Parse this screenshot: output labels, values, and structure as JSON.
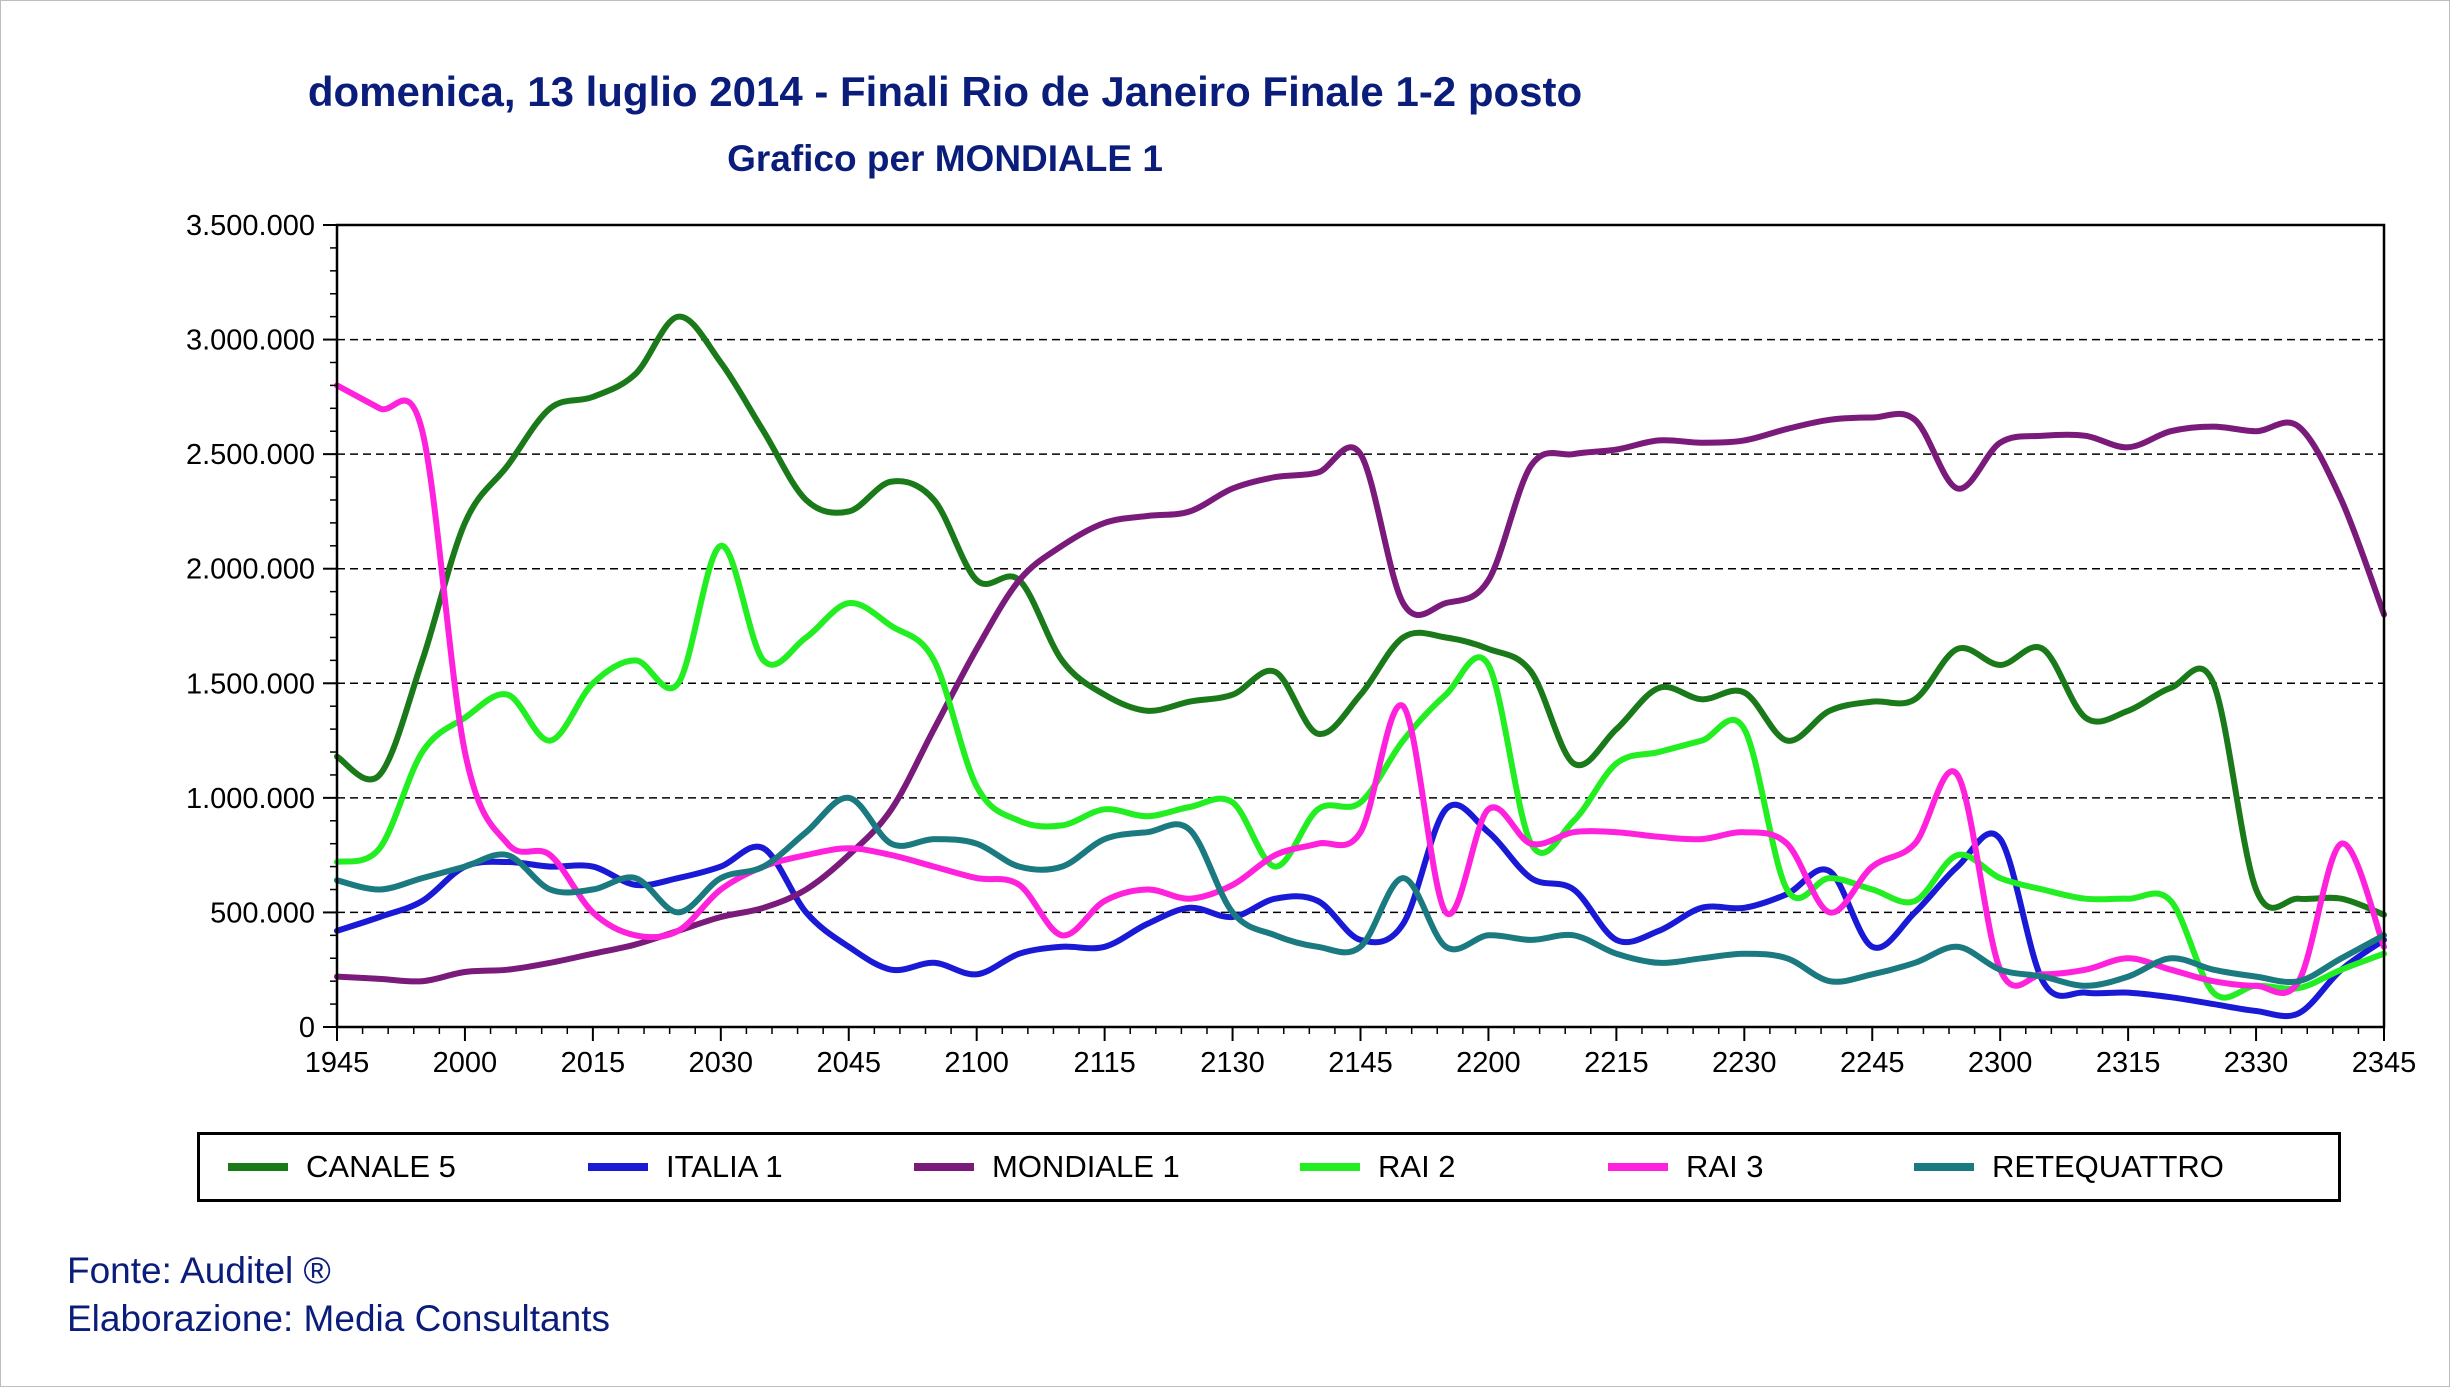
{
  "chart_data": {
    "type": "line",
    "title": "domenica, 13 luglio 2014 - Finali Rio de Janeiro Finale 1-2 posto",
    "subtitle": "Grafico per MONDIALE 1",
    "xlabel": "",
    "ylabel": "",
    "ylim": [
      0,
      3500000
    ],
    "y_ticks": [
      0,
      500000,
      1000000,
      1500000,
      2000000,
      2500000,
      3000000,
      3500000
    ],
    "y_tick_labels": [
      "0",
      "500.000",
      "1.000.000",
      "1.500.000",
      "2.000.000",
      "2.500.000",
      "3.000.000",
      "3.500.000"
    ],
    "x_tick_labels": [
      "1945",
      "2000",
      "2015",
      "2030",
      "2045",
      "2100",
      "2115",
      "2130",
      "2145",
      "2200",
      "2215",
      "2230",
      "2245",
      "2300",
      "2315",
      "2330",
      "2345"
    ],
    "grid": "horizontal dashed",
    "legend_position": "bottom",
    "series": [
      {
        "name": "CANALE 5",
        "color": "#1a7a1a",
        "x": [
          "19:45",
          "19:50",
          "19:55",
          "20:00",
          "20:05",
          "20:10",
          "20:15",
          "20:20",
          "20:25",
          "20:30",
          "20:35",
          "20:40",
          "20:45",
          "20:50",
          "20:55",
          "21:00",
          "21:05",
          "21:10",
          "21:15",
          "21:20",
          "21:25",
          "21:30",
          "21:35",
          "21:40",
          "21:45",
          "21:50",
          "21:55",
          "22:00",
          "22:05",
          "22:10",
          "22:15",
          "22:20",
          "22:25",
          "22:30",
          "22:35",
          "22:40",
          "22:45",
          "22:50",
          "22:55",
          "23:00",
          "23:05",
          "23:10",
          "23:15",
          "23:20",
          "23:25",
          "23:30",
          "23:35",
          "23:40",
          "23:45"
        ],
        "values": [
          1180000,
          1100000,
          1600000,
          2200000,
          2450000,
          2700000,
          2750000,
          2850000,
          3100000,
          2900000,
          2600000,
          2300000,
          2250000,
          2380000,
          2300000,
          1950000,
          1950000,
          1600000,
          1450000,
          1380000,
          1420000,
          1450000,
          1550000,
          1280000,
          1450000,
          1700000,
          1700000,
          1650000,
          1550000,
          1150000,
          1300000,
          1480000,
          1430000,
          1460000,
          1250000,
          1380000,
          1420000,
          1430000,
          1650000,
          1580000,
          1650000,
          1350000,
          1380000,
          1480000,
          1500000,
          600000,
          560000,
          560000,
          490000
        ]
      },
      {
        "name": "ITALIA 1",
        "color": "#1a1ad6",
        "x": [
          "19:45",
          "19:50",
          "19:55",
          "20:00",
          "20:05",
          "20:10",
          "20:15",
          "20:20",
          "20:25",
          "20:30",
          "20:35",
          "20:40",
          "20:45",
          "20:50",
          "20:55",
          "21:00",
          "21:05",
          "21:10",
          "21:15",
          "21:20",
          "21:25",
          "21:30",
          "21:35",
          "21:40",
          "21:45",
          "21:50",
          "21:55",
          "22:00",
          "22:05",
          "22:10",
          "22:15",
          "22:20",
          "22:25",
          "22:30",
          "22:35",
          "22:40",
          "22:45",
          "22:50",
          "22:55",
          "23:00",
          "23:05",
          "23:10",
          "23:15",
          "23:20",
          "23:25",
          "23:30",
          "23:35",
          "23:40",
          "23:45"
        ],
        "values": [
          420000,
          480000,
          550000,
          700000,
          720000,
          700000,
          700000,
          620000,
          650000,
          700000,
          780000,
          500000,
          350000,
          250000,
          280000,
          230000,
          320000,
          350000,
          350000,
          450000,
          520000,
          480000,
          560000,
          550000,
          380000,
          450000,
          950000,
          850000,
          650000,
          600000,
          380000,
          420000,
          520000,
          520000,
          580000,
          680000,
          350000,
          500000,
          700000,
          820000,
          200000,
          150000,
          150000,
          130000,
          100000,
          70000,
          60000,
          250000,
          380000
        ]
      },
      {
        "name": "MONDIALE 1",
        "color": "#7a1a7a",
        "x": [
          "19:45",
          "19:50",
          "19:55",
          "20:00",
          "20:05",
          "20:10",
          "20:15",
          "20:20",
          "20:25",
          "20:30",
          "20:35",
          "20:40",
          "20:45",
          "20:50",
          "20:55",
          "21:00",
          "21:05",
          "21:10",
          "21:15",
          "21:20",
          "21:25",
          "21:30",
          "21:35",
          "21:40",
          "21:45",
          "21:50",
          "21:55",
          "22:00",
          "22:05",
          "22:10",
          "22:15",
          "22:20",
          "22:25",
          "22:30",
          "22:35",
          "22:40",
          "22:45",
          "22:50",
          "22:55",
          "23:00",
          "23:05",
          "23:10",
          "23:15",
          "23:20",
          "23:25",
          "23:30",
          "23:35",
          "23:40",
          "23:45"
        ],
        "values": [
          220000,
          210000,
          200000,
          240000,
          250000,
          280000,
          320000,
          360000,
          420000,
          480000,
          520000,
          600000,
          750000,
          950000,
          1300000,
          1650000,
          1950000,
          2100000,
          2200000,
          2230000,
          2250000,
          2350000,
          2400000,
          2420000,
          2500000,
          1850000,
          1850000,
          1950000,
          2450000,
          2500000,
          2520000,
          2560000,
          2550000,
          2560000,
          2610000,
          2650000,
          2660000,
          2650000,
          2350000,
          2550000,
          2580000,
          2580000,
          2530000,
          2600000,
          2620000,
          2600000,
          2620000,
          2300000,
          1800000
        ]
      },
      {
        "name": "RAI 2",
        "color": "#22ee22",
        "x": [
          "19:45",
          "19:50",
          "19:55",
          "20:00",
          "20:05",
          "20:10",
          "20:15",
          "20:20",
          "20:25",
          "20:30",
          "20:35",
          "20:40",
          "20:45",
          "20:50",
          "20:55",
          "21:00",
          "21:05",
          "21:10",
          "21:15",
          "21:20",
          "21:25",
          "21:30",
          "21:35",
          "21:40",
          "21:45",
          "21:50",
          "21:55",
          "22:00",
          "22:05",
          "22:10",
          "22:15",
          "22:20",
          "22:25",
          "22:30",
          "22:35",
          "22:40",
          "22:45",
          "22:50",
          "22:55",
          "23:00",
          "23:05",
          "23:10",
          "23:15",
          "23:20",
          "23:25",
          "23:30",
          "23:35",
          "23:40",
          "23:45"
        ],
        "values": [
          720000,
          780000,
          1200000,
          1350000,
          1450000,
          1250000,
          1500000,
          1600000,
          1500000,
          2100000,
          1600000,
          1700000,
          1850000,
          1750000,
          1600000,
          1050000,
          900000,
          880000,
          950000,
          920000,
          960000,
          980000,
          700000,
          950000,
          980000,
          1250000,
          1450000,
          1580000,
          800000,
          900000,
          1150000,
          1200000,
          1250000,
          1300000,
          600000,
          650000,
          600000,
          550000,
          750000,
          650000,
          600000,
          560000,
          560000,
          550000,
          150000,
          180000,
          170000,
          250000,
          320000
        ]
      },
      {
        "name": "RAI 3",
        "color": "#ff22dd",
        "x": [
          "19:45",
          "19:50",
          "19:55",
          "20:00",
          "20:05",
          "20:10",
          "20:15",
          "20:20",
          "20:25",
          "20:30",
          "20:35",
          "20:40",
          "20:45",
          "20:50",
          "20:55",
          "21:00",
          "21:05",
          "21:10",
          "21:15",
          "21:20",
          "21:25",
          "21:30",
          "21:35",
          "21:40",
          "21:45",
          "21:50",
          "21:55",
          "22:00",
          "22:05",
          "22:10",
          "22:15",
          "22:20",
          "22:25",
          "22:30",
          "22:35",
          "22:40",
          "22:45",
          "22:50",
          "22:55",
          "23:00",
          "23:05",
          "23:10",
          "23:15",
          "23:20",
          "23:25",
          "23:30",
          "23:35",
          "23:40",
          "23:45"
        ],
        "values": [
          2800000,
          2700000,
          2600000,
          1200000,
          800000,
          750000,
          500000,
          400000,
          420000,
          600000,
          700000,
          750000,
          780000,
          750000,
          700000,
          650000,
          620000,
          400000,
          550000,
          600000,
          560000,
          620000,
          750000,
          800000,
          850000,
          1400000,
          500000,
          950000,
          800000,
          850000,
          850000,
          830000,
          820000,
          850000,
          800000,
          500000,
          700000,
          800000,
          1100000,
          250000,
          230000,
          250000,
          300000,
          250000,
          200000,
          180000,
          200000,
          800000,
          350000
        ]
      },
      {
        "name": "RETEQUATTRO",
        "color": "#1a7a80",
        "x": [
          "19:45",
          "19:50",
          "19:55",
          "20:00",
          "20:05",
          "20:10",
          "20:15",
          "20:20",
          "20:25",
          "20:30",
          "20:35",
          "20:40",
          "20:45",
          "20:50",
          "20:55",
          "21:00",
          "21:05",
          "21:10",
          "21:15",
          "21:20",
          "21:25",
          "21:30",
          "21:35",
          "21:40",
          "21:45",
          "21:50",
          "21:55",
          "22:00",
          "22:05",
          "22:10",
          "22:15",
          "22:20",
          "22:25",
          "22:30",
          "22:35",
          "22:40",
          "22:45",
          "22:50",
          "22:55",
          "23:00",
          "23:05",
          "23:10",
          "23:15",
          "23:20",
          "23:25",
          "23:30",
          "23:35",
          "23:40",
          "23:45"
        ],
        "values": [
          640000,
          600000,
          650000,
          700000,
          750000,
          600000,
          600000,
          650000,
          500000,
          650000,
          700000,
          850000,
          1000000,
          800000,
          820000,
          800000,
          700000,
          700000,
          820000,
          850000,
          860000,
          500000,
          400000,
          350000,
          350000,
          650000,
          350000,
          400000,
          380000,
          400000,
          320000,
          280000,
          300000,
          320000,
          300000,
          200000,
          230000,
          280000,
          350000,
          250000,
          220000,
          180000,
          220000,
          300000,
          250000,
          220000,
          200000,
          300000,
          400000
        ]
      }
    ]
  },
  "footer": {
    "source": "Fonte: Auditel ®",
    "processing": "Elaborazione: Media Consultants"
  }
}
